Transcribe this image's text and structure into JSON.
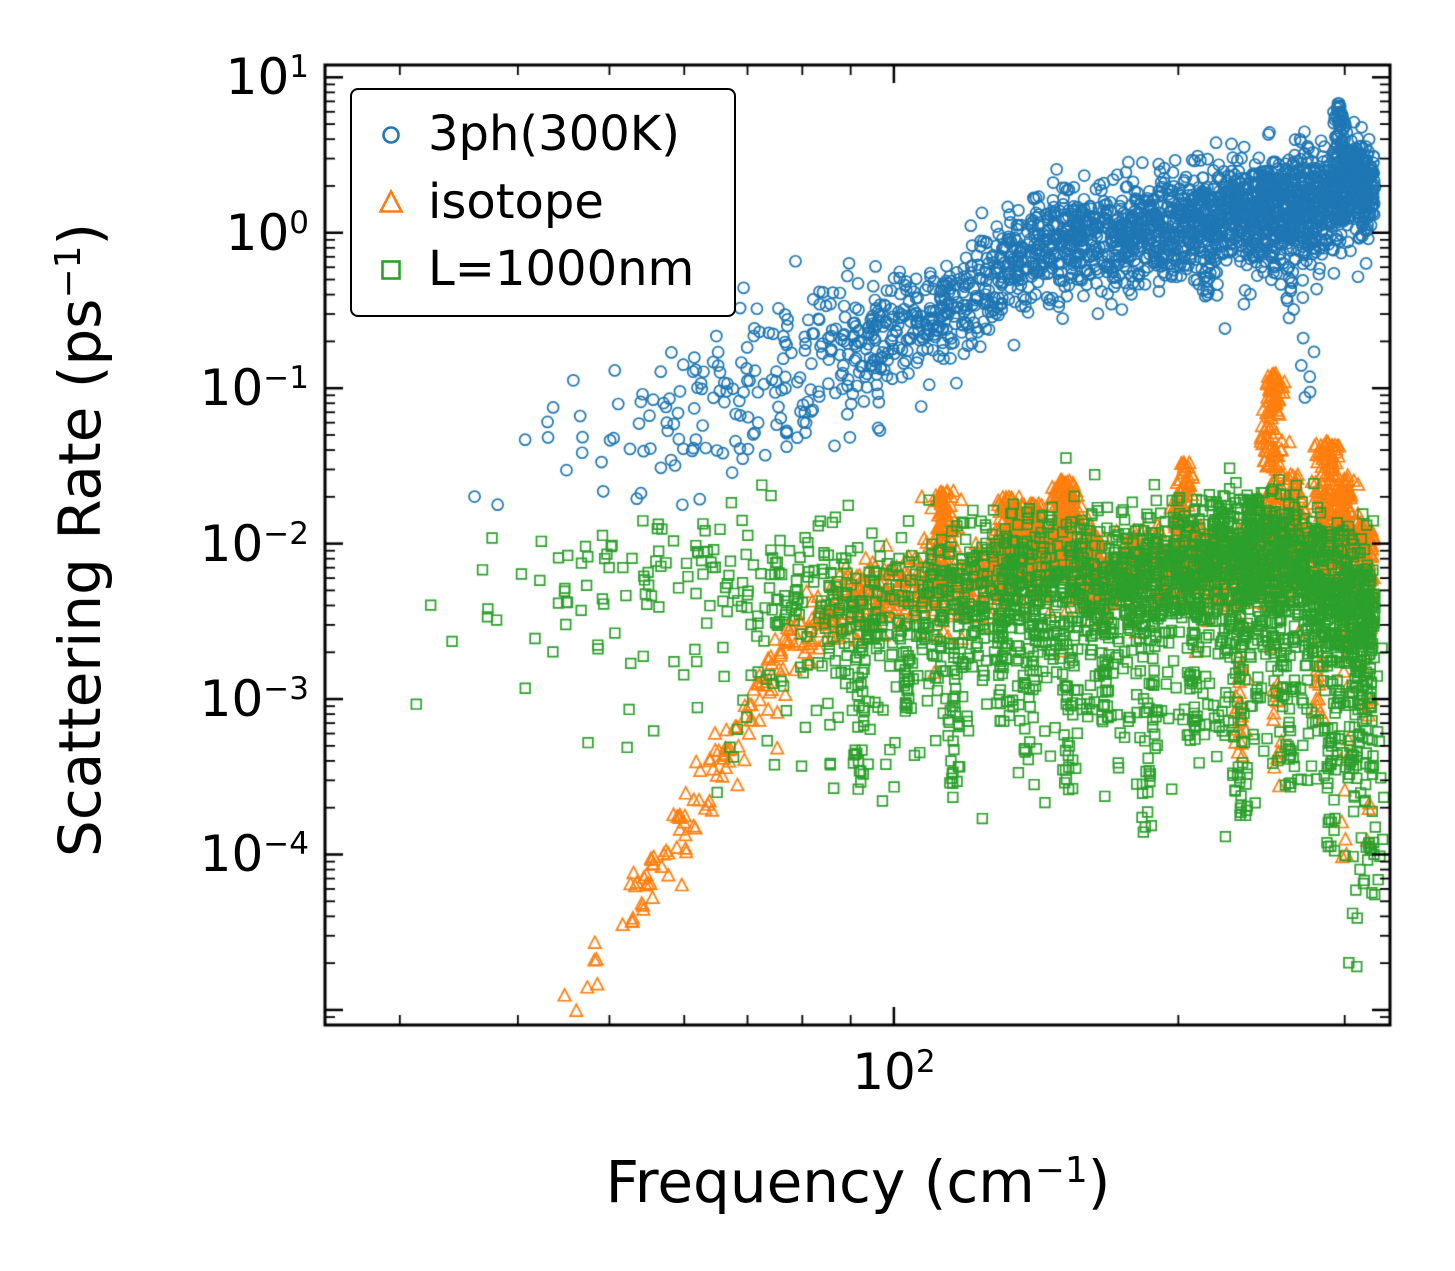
{
  "figure": {
    "background": "#ffffff",
    "axis_color": "#000000"
  },
  "chart_data": {
    "type": "scatter",
    "title": "",
    "xlabel": "Frequency (cm−1)",
    "ylabel": "Scattering Rate (ps−1)",
    "xlabel_parts": {
      "pre": "Frequency (cm",
      "exp": "−1",
      "post": ")"
    },
    "ylabel_parts": {
      "pre": "Scattering Rate (ps",
      "exp": "−1",
      "post": ")"
    },
    "x_scale": "log",
    "y_scale": "log",
    "xlim": [
      25,
      335
    ],
    "ylim": [
      8e-06,
      12
    ],
    "grid": false,
    "x_major_ticks": [
      100
    ],
    "x_major_labels": [
      {
        "base": "10",
        "exp": "2"
      }
    ],
    "x_minor_ticks": [
      30,
      40,
      50,
      60,
      70,
      80,
      90,
      200,
      300
    ],
    "y_major_ticks": [
      10,
      1,
      0.1,
      0.01,
      0.001,
      0.0001,
      1e-05
    ],
    "y_major_labels": [
      {
        "base": "10",
        "exp": "1"
      },
      {
        "base": "10",
        "exp": "0"
      },
      {
        "base": "10",
        "exp": "−1"
      },
      {
        "base": "10",
        "exp": "−2"
      },
      {
        "base": "10",
        "exp": "−3"
      },
      {
        "base": "10",
        "exp": "−4"
      },
      {
        "base": "",
        "exp": ""
      }
    ],
    "legend": {
      "position": "upper left",
      "entries": [
        {
          "label": "3ph(300K)",
          "marker": "circle",
          "color": "#1f77b4"
        },
        {
          "label": "isotope",
          "marker": "triangle",
          "color": "#ff7f0e"
        },
        {
          "label": "L=1000nm",
          "marker": "square",
          "color": "#2ca02c"
        }
      ]
    },
    "series": [
      {
        "name": "3ph(300K)",
        "color": "#1f77b4",
        "marker": "circle",
        "count": 2400,
        "seed": 101,
        "x_bias": 0.3,
        "x_range": [
          29,
          323
        ],
        "scatter_dex": 0.17,
        "low_x_cut": 90,
        "low_x_scatter_mult": 1.7,
        "tail_prob": 0.02,
        "tail_dex": 0.5,
        "trend": [
          [
            29,
            0.012
          ],
          [
            34,
            0.02
          ],
          [
            39,
            0.03
          ],
          [
            44,
            0.04
          ],
          [
            50,
            0.05
          ],
          [
            56,
            0.065
          ],
          [
            62,
            0.08
          ],
          [
            68,
            0.1
          ],
          [
            74,
            0.12
          ],
          [
            80,
            0.15
          ],
          [
            86,
            0.17
          ],
          [
            92,
            0.19
          ],
          [
            98,
            0.23
          ],
          [
            105,
            0.28
          ],
          [
            112,
            0.33
          ],
          [
            120,
            0.42
          ],
          [
            128,
            0.52
          ],
          [
            136,
            0.65
          ],
          [
            144,
            0.85
          ],
          [
            150,
            0.95
          ],
          [
            156,
            0.85
          ],
          [
            164,
            0.95
          ],
          [
            172,
            0.85
          ],
          [
            180,
            1.0
          ],
          [
            190,
            1.05
          ],
          [
            200,
            1.15
          ],
          [
            210,
            1.25
          ],
          [
            220,
            1.15
          ],
          [
            230,
            1.5
          ],
          [
            240,
            1.25
          ],
          [
            250,
            1.5
          ],
          [
            260,
            1.35
          ],
          [
            270,
            1.7
          ],
          [
            280,
            1.45
          ],
          [
            290,
            1.6
          ],
          [
            300,
            1.9
          ],
          [
            310,
            2.1
          ],
          [
            323,
            1.8
          ]
        ],
        "spikes_up": [
          {
            "x": 296,
            "y": 6.8,
            "count": 70,
            "w": 0.006
          },
          {
            "x": 308,
            "y": 3.4,
            "count": 45,
            "w": 0.006
          },
          {
            "x": 248,
            "y": 2.5,
            "count": 35,
            "w": 0.006
          },
          {
            "x": 157,
            "y": 1.2,
            "count": 25,
            "w": 0.006
          }
        ],
        "spikes_down": [
          {
            "x": 262,
            "y": 0.28,
            "count": 18,
            "w": 0.005
          },
          {
            "x": 272,
            "y": 0.055,
            "count": 14,
            "w": 0.005
          },
          {
            "x": 215,
            "y": 0.35,
            "count": 12,
            "w": 0.005
          },
          {
            "x": 96,
            "y": 0.045,
            "count": 10,
            "w": 0.005
          }
        ]
      },
      {
        "name": "isotope",
        "color": "#ff7f0e",
        "marker": "triangle",
        "count": 1500,
        "seed": 202,
        "x_bias": 0.5,
        "x_range": [
          43,
          322
        ],
        "scatter_dex": 0.13,
        "low_x_cut": 0,
        "low_x_scatter_mult": 1,
        "tail_prob": 0.02,
        "tail_dex": 0.7,
        "trend": [
          [
            43,
            7e-06
          ],
          [
            47,
            1.6e-05
          ],
          [
            51,
            3.5e-05
          ],
          [
            55,
            7e-05
          ],
          [
            59,
            0.00014
          ],
          [
            63,
            0.00028
          ],
          [
            67,
            0.00055
          ],
          [
            71,
            0.001
          ],
          [
            75,
            0.0016
          ],
          [
            79,
            0.0023
          ],
          [
            84,
            0.0032
          ],
          [
            89,
            0.004
          ],
          [
            95,
            0.0046
          ],
          [
            101,
            0.005
          ],
          [
            108,
            0.0055
          ],
          [
            115,
            0.005
          ],
          [
            122,
            0.0055
          ],
          [
            129,
            0.007
          ],
          [
            136,
            0.008
          ],
          [
            143,
            0.0075
          ],
          [
            150,
            0.0085
          ],
          [
            158,
            0.0065
          ],
          [
            166,
            0.006
          ],
          [
            175,
            0.0065
          ],
          [
            185,
            0.007
          ],
          [
            195,
            0.0075
          ],
          [
            205,
            0.0085
          ],
          [
            215,
            0.0075
          ],
          [
            225,
            0.007
          ],
          [
            235,
            0.0075
          ],
          [
            245,
            0.0085
          ],
          [
            255,
            0.008
          ],
          [
            265,
            0.008
          ],
          [
            275,
            0.0085
          ],
          [
            285,
            0.009
          ],
          [
            295,
            0.0085
          ],
          [
            305,
            0.0085
          ],
          [
            315,
            0.008
          ],
          [
            322,
            0.0075
          ]
        ],
        "spikes_up": [
          {
            "x": 113,
            "y": 0.022,
            "count": 90,
            "w": 0.01
          },
          {
            "x": 133,
            "y": 0.02,
            "count": 110,
            "w": 0.013
          },
          {
            "x": 141,
            "y": 0.018,
            "count": 60,
            "w": 0.008
          },
          {
            "x": 152,
            "y": 0.026,
            "count": 130,
            "w": 0.012
          },
          {
            "x": 163,
            "y": 0.012,
            "count": 40,
            "w": 0.008
          },
          {
            "x": 178,
            "y": 0.011,
            "count": 40,
            "w": 0.008
          },
          {
            "x": 202,
            "y": 0.034,
            "count": 70,
            "w": 0.008
          },
          {
            "x": 222,
            "y": 0.012,
            "count": 40,
            "w": 0.008
          },
          {
            "x": 252,
            "y": 0.125,
            "count": 150,
            "w": 0.01
          },
          {
            "x": 265,
            "y": 0.028,
            "count": 50,
            "w": 0.007
          },
          {
            "x": 287,
            "y": 0.045,
            "count": 110,
            "w": 0.01
          },
          {
            "x": 300,
            "y": 0.028,
            "count": 60,
            "w": 0.008
          },
          {
            "x": 315,
            "y": 0.014,
            "count": 30,
            "w": 0.006
          }
        ],
        "spikes_down": [
          {
            "x": 233,
            "y": 0.0004,
            "count": 25,
            "w": 0.006
          },
          {
            "x": 255,
            "y": 0.00025,
            "count": 20,
            "w": 0.005
          },
          {
            "x": 282,
            "y": 0.0006,
            "count": 15,
            "w": 0.005
          },
          {
            "x": 300,
            "y": 9e-05,
            "count": 18,
            "w": 0.005
          },
          {
            "x": 318,
            "y": 0.00012,
            "count": 14,
            "w": 0.005
          }
        ]
      },
      {
        "name": "L=1000nm",
        "color": "#2ca02c",
        "marker": "square",
        "count": 2600,
        "seed": 303,
        "x_bias": 0.3,
        "x_range": [
          27,
          323
        ],
        "scatter_dex": 0.24,
        "low_x_cut": 0,
        "low_x_scatter_mult": 1,
        "tail_prob": 0.22,
        "tail_dex": 1.1,
        "trend": [
          [
            27,
            0.006
          ],
          [
            32,
            0.005
          ],
          [
            38,
            0.0055
          ],
          [
            44,
            0.006
          ],
          [
            50,
            0.007
          ],
          [
            56,
            0.008
          ],
          [
            62,
            0.007
          ],
          [
            68,
            0.006
          ],
          [
            74,
            0.005
          ],
          [
            80,
            0.0045
          ],
          [
            86,
            0.004
          ],
          [
            92,
            0.0035
          ],
          [
            98,
            0.0035
          ],
          [
            105,
            0.004
          ],
          [
            112,
            0.005
          ],
          [
            120,
            0.0055
          ],
          [
            128,
            0.006
          ],
          [
            136,
            0.0055
          ],
          [
            144,
            0.005
          ],
          [
            152,
            0.006
          ],
          [
            160,
            0.0055
          ],
          [
            170,
            0.005
          ],
          [
            180,
            0.006
          ],
          [
            190,
            0.0065
          ],
          [
            200,
            0.007
          ],
          [
            212,
            0.0075
          ],
          [
            224,
            0.008
          ],
          [
            236,
            0.007
          ],
          [
            248,
            0.0065
          ],
          [
            260,
            0.007
          ],
          [
            272,
            0.006
          ],
          [
            284,
            0.005
          ],
          [
            296,
            0.0045
          ],
          [
            308,
            0.004
          ],
          [
            320,
            0.003
          ]
        ],
        "spikes_up": [
          {
            "x": 132,
            "y": 0.013,
            "count": 12,
            "w": 0.006
          },
          {
            "x": 223,
            "y": 0.018,
            "count": 20,
            "w": 0.007
          },
          {
            "x": 240,
            "y": 0.021,
            "count": 25,
            "w": 0.008
          },
          {
            "x": 256,
            "y": 0.016,
            "count": 18,
            "w": 0.006
          }
        ],
        "spikes_down": [
          {
            "x": 92,
            "y": 0.00025,
            "count": 30,
            "w": 0.007
          },
          {
            "x": 103,
            "y": 0.0008,
            "count": 20,
            "w": 0.006
          },
          {
            "x": 116,
            "y": 0.00022,
            "count": 45,
            "w": 0.008
          },
          {
            "x": 130,
            "y": 0.0007,
            "count": 30,
            "w": 0.007
          },
          {
            "x": 140,
            "y": 0.0009,
            "count": 25,
            "w": 0.006
          },
          {
            "x": 153,
            "y": 0.00025,
            "count": 35,
            "w": 0.007
          },
          {
            "x": 168,
            "y": 0.0007,
            "count": 25,
            "w": 0.006
          },
          {
            "x": 186,
            "y": 0.00011,
            "count": 30,
            "w": 0.007
          },
          {
            "x": 207,
            "y": 0.0005,
            "count": 25,
            "w": 0.006
          },
          {
            "x": 233,
            "y": 0.00014,
            "count": 30,
            "w": 0.007
          },
          {
            "x": 262,
            "y": 0.00025,
            "count": 25,
            "w": 0.006
          },
          {
            "x": 290,
            "y": 9e-05,
            "count": 35,
            "w": 0.008
          },
          {
            "x": 306,
            "y": 1.8e-05,
            "count": 25,
            "w": 0.007
          },
          {
            "x": 320,
            "y": 5e-05,
            "count": 35,
            "w": 0.008
          }
        ]
      }
    ]
  }
}
